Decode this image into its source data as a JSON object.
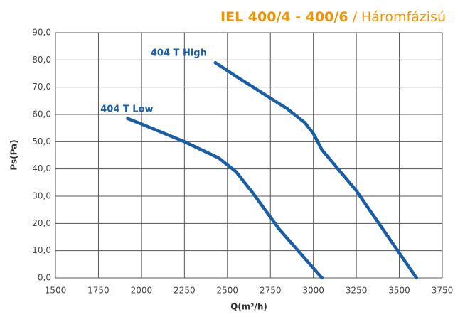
{
  "chart_data": {
    "type": "line",
    "title": "IEL 400/4 - 400/6",
    "subtitle": "/ Háromfázisú",
    "x_label": "Q(m³/h)",
    "y_label": "Ps(Pa)",
    "xlim": [
      1500,
      3750
    ],
    "xticks": [
      1500,
      1750,
      2000,
      2250,
      2500,
      2750,
      3000,
      3250,
      3500,
      3750
    ],
    "ylim": [
      0,
      90
    ],
    "yticks": [
      {
        "value": 0,
        "label": "0,0"
      },
      {
        "value": 10,
        "label": "10,0"
      },
      {
        "value": 20,
        "label": "20,0"
      },
      {
        "value": 30,
        "label": "30,0"
      },
      {
        "value": 40,
        "label": "40,0"
      },
      {
        "value": 50,
        "label": "50,0"
      },
      {
        "value": 60,
        "label": "60,0"
      },
      {
        "value": 70,
        "label": "70,0"
      },
      {
        "value": 80,
        "label": "80,0"
      },
      {
        "value": 90,
        "label": "90,0"
      }
    ],
    "grid": true,
    "series": [
      {
        "name": "404 T High",
        "color": "#1a5ea8",
        "x": [
          2430,
          2550,
          2700,
          2850,
          2950,
          3000,
          3050,
          3250,
          3600
        ],
        "values": [
          79,
          74,
          68,
          62,
          57,
          53,
          47,
          32,
          0
        ]
      },
      {
        "name": "404 T Low",
        "color": "#1a5ea8",
        "x": [
          1920,
          2000,
          2250,
          2450,
          2550,
          2650,
          2800,
          3050
        ],
        "values": [
          58.5,
          56.5,
          50,
          44,
          39,
          31,
          18,
          0
        ]
      }
    ]
  }
}
